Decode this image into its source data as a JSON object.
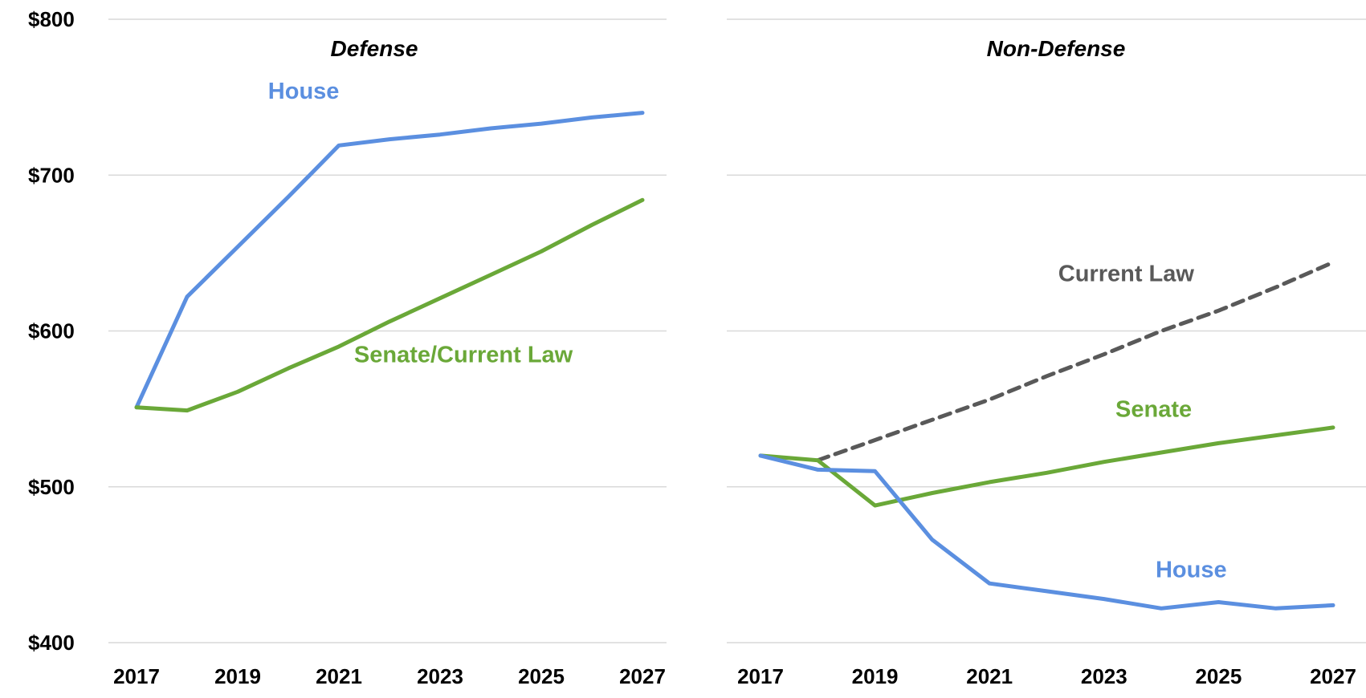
{
  "chart_data": [
    {
      "type": "line",
      "title": "Defense",
      "xlabel": "",
      "ylabel": "",
      "ylim": [
        400,
        800
      ],
      "x": [
        2017,
        2018,
        2019,
        2020,
        2021,
        2022,
        2023,
        2024,
        2025,
        2026,
        2027
      ],
      "x_tick_labels": [
        "2017",
        "2019",
        "2021",
        "2023",
        "2025",
        "2027"
      ],
      "y_tick_labels": [
        "$800",
        "$700",
        "$600",
        "$500",
        "$400"
      ],
      "y_ticks": [
        800,
        700,
        600,
        500,
        400
      ],
      "grid": true,
      "series": [
        {
          "name": "House",
          "color": "#5b8fe0",
          "style": "solid",
          "values": [
            551,
            622,
            654,
            686,
            719,
            723,
            726,
            730,
            733,
            737,
            740
          ]
        },
        {
          "name": "Senate/Current Law",
          "color": "#6aa838",
          "style": "solid",
          "values": [
            551,
            549,
            561,
            576,
            590,
            606,
            621,
            636,
            651,
            668,
            684
          ]
        }
      ],
      "annotations": [
        {
          "text": "House",
          "series": "House",
          "anchor": {
            "x": 2019.6,
            "y": 749
          }
        },
        {
          "text": "Senate/Current Law",
          "series": "Senate/Current Law",
          "anchor": {
            "x": 2021.3,
            "y": 580
          }
        }
      ]
    },
    {
      "type": "line",
      "title": "Non-Defense",
      "xlabel": "",
      "ylabel": "",
      "ylim": [
        400,
        800
      ],
      "x": [
        2017,
        2018,
        2019,
        2020,
        2021,
        2022,
        2023,
        2024,
        2025,
        2026,
        2027
      ],
      "x_tick_labels": [
        "2017",
        "2019",
        "2021",
        "2023",
        "2025",
        "2027"
      ],
      "grid": true,
      "series": [
        {
          "name": "Current Law",
          "color": "#595959",
          "style": "dashed",
          "x": [
            2018,
            2019,
            2020,
            2021,
            2022,
            2023,
            2024,
            2025,
            2026,
            2027
          ],
          "values": [
            517,
            530,
            543,
            556,
            571,
            585,
            600,
            613,
            628,
            644
          ]
        },
        {
          "name": "Senate",
          "color": "#6aa838",
          "style": "solid",
          "values": [
            520,
            517,
            488,
            496,
            503,
            509,
            516,
            522,
            528,
            533,
            538
          ]
        },
        {
          "name": "House",
          "color": "#5b8fe0",
          "style": "solid",
          "values": [
            520,
            511,
            510,
            466,
            438,
            433,
            428,
            422,
            426,
            422,
            424
          ]
        }
      ],
      "annotations": [
        {
          "text": "Current Law",
          "series": "Current Law",
          "anchor": {
            "x": 2022.2,
            "y": 632
          }
        },
        {
          "text": "Senate",
          "series": "Senate",
          "anchor": {
            "x": 2023.2,
            "y": 545
          }
        },
        {
          "text": "House",
          "series": "House",
          "anchor": {
            "x": 2023.9,
            "y": 442
          }
        }
      ]
    }
  ]
}
